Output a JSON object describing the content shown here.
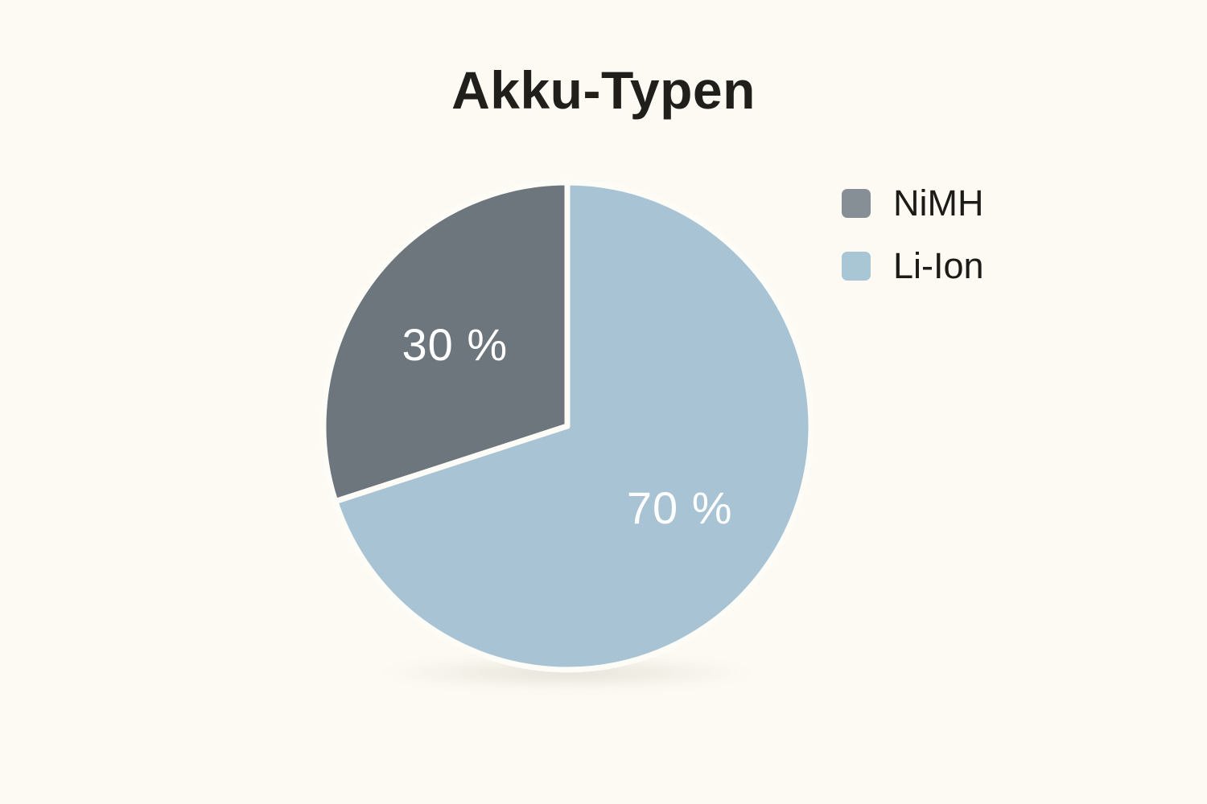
{
  "page": {
    "background_color": "#fcfaf3"
  },
  "chart_data": {
    "type": "pie",
    "title": "Akku-Typen",
    "categories": [
      "NiMH",
      "Li-Ion"
    ],
    "values": [
      30,
      70
    ],
    "unit": "%",
    "slice_labels": [
      "30 %",
      "70 %"
    ],
    "colors": [
      "#6d767c",
      "#a8c4d4"
    ],
    "legend_colors": [
      "#868f95",
      "#a9c6d5"
    ],
    "slice_label_color": "#ffffff",
    "divider_color": "#fdfcf7",
    "start_angle": "top",
    "direction": "counterclockwise",
    "legend_position": "right",
    "grid": "off"
  },
  "legend": {
    "items": [
      {
        "label": "NiMH",
        "color": "#868f95"
      },
      {
        "label": "Li-Ion",
        "color": "#a9c6d5"
      }
    ]
  }
}
